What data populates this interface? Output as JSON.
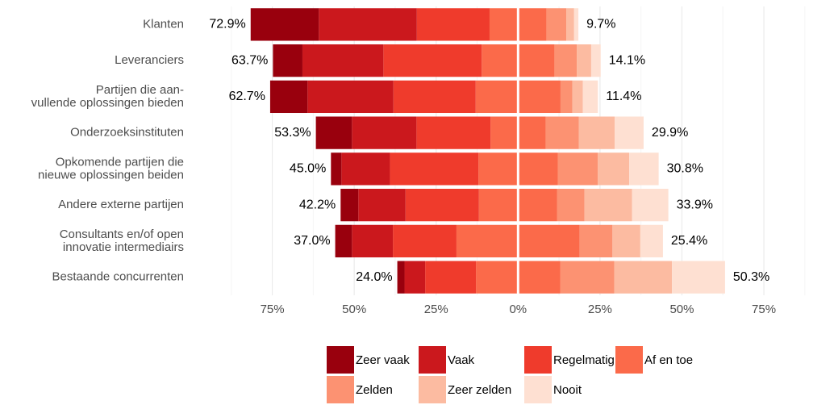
{
  "chart_data": {
    "type": "diverging_stacked_bar",
    "categories": [
      [
        "Klanten"
      ],
      [
        "Leveranciers"
      ],
      [
        "Partijen die aan-",
        "vullende oplossingen bieden"
      ],
      [
        "Onderzoeksinstituten"
      ],
      [
        "Opkomende partijen die",
        "nieuwe oplossingen beiden"
      ],
      [
        "Andere externe partijen"
      ],
      [
        "Consultants en/of open",
        "innovatie intermediairs"
      ],
      [
        "Bestaande concurrenten"
      ]
    ],
    "series": [
      {
        "name": "Zeer vaak",
        "color": "#99000d",
        "side": "left",
        "values": [
          20.8,
          9.0,
          11.4,
          11.0,
          3.2,
          5.4,
          5.1,
          2.2
        ]
      },
      {
        "name": "Vaak",
        "color": "#cb181d",
        "side": "left",
        "values": [
          29.9,
          24.7,
          26.2,
          19.7,
          14.8,
          14.4,
          12.5,
          6.3
        ]
      },
      {
        "name": "Regelmatig",
        "color": "#ef3b2c",
        "side": "left",
        "values": [
          22.2,
          30.0,
          25.1,
          22.6,
          27.0,
          22.4,
          19.4,
          15.5
        ]
      },
      {
        "name": "Af en toe",
        "color": "#fb6a4a",
        "side": "center",
        "values": [
          17.4,
          22.2,
          25.9,
          16.8,
          24.2,
          23.9,
          37.6,
          25.7
        ]
      },
      {
        "name": "Zelden",
        "color": "#fc9272",
        "side": "right",
        "values": [
          6.0,
          6.8,
          3.6,
          10.1,
          12.2,
          8.3,
          10.0,
          16.5
        ]
      },
      {
        "name": "Zeer zelden",
        "color": "#fcbba1",
        "side": "right",
        "values": [
          2.4,
          4.4,
          3.2,
          11.0,
          9.6,
          14.5,
          8.5,
          17.6
        ]
      },
      {
        "name": "Nooit",
        "color": "#fee0d2",
        "side": "right",
        "values": [
          1.3,
          2.9,
          4.6,
          8.8,
          9.0,
          11.1,
          6.9,
          16.2
        ]
      }
    ],
    "left_totals": {
      "values": [
        72.9,
        63.7,
        62.7,
        53.3,
        45.0,
        42.2,
        37.0,
        24.0
      ],
      "value_labels": [
        "72.9%",
        "63.7%",
        "62.7%",
        "53.3%",
        "45.0%",
        "42.2%",
        "37.0%",
        "24.0%"
      ]
    },
    "right_totals": {
      "values": [
        9.7,
        14.1,
        11.4,
        29.9,
        30.8,
        33.9,
        25.4,
        50.3
      ],
      "value_labels": [
        "9.7%",
        "14.1%",
        "11.4%",
        "29.9%",
        "30.8%",
        "33.9%",
        "25.4%",
        "50.3%"
      ]
    },
    "xlim": [
      -100,
      90
    ],
    "xticks": [
      {
        "value": -75,
        "label": "75%"
      },
      {
        "value": -50,
        "label": "50%"
      },
      {
        "value": -25,
        "label": "25%"
      },
      {
        "value": 0,
        "label": "0%"
      },
      {
        "value": 25,
        "label": "25%"
      },
      {
        "value": 50,
        "label": "50%"
      },
      {
        "value": 75,
        "label": "75%"
      }
    ],
    "xminor": [
      -87.5,
      -62.5,
      -37.5,
      -12.5,
      12.5,
      37.5,
      62.5,
      87.5
    ],
    "grid": true,
    "legend": "bottom"
  }
}
